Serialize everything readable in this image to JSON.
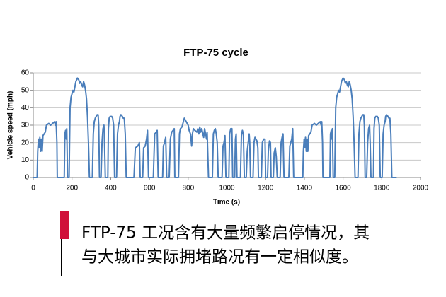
{
  "chart_data": {
    "type": "line",
    "title": "FTP-75 cycle",
    "xlabel": "Time (s)",
    "ylabel": "Vehicle speed (mph)",
    "color": "#4a7ebb",
    "xlim": [
      0,
      2000
    ],
    "xticks": [
      0,
      200,
      400,
      600,
      800,
      1000,
      1200,
      1400,
      1600,
      1800,
      2000
    ],
    "ylim": [
      0,
      60
    ],
    "yticks": [
      0,
      10,
      20,
      30,
      40,
      50,
      60
    ],
    "grid": true,
    "x": [
      0,
      20,
      23,
      27,
      30,
      34,
      38,
      42,
      46,
      50,
      56,
      62,
      68,
      80,
      90,
      100,
      110,
      115,
      118,
      122,
      124,
      160,
      163,
      167,
      170,
      173,
      177,
      185,
      190,
      195,
      200,
      205,
      210,
      215,
      220,
      228,
      235,
      240,
      245,
      250,
      255,
      260,
      265,
      270,
      275,
      280,
      285,
      290,
      305,
      310,
      315,
      320,
      325,
      330,
      335,
      338,
      342,
      350,
      355,
      360,
      365,
      368,
      372,
      385,
      388,
      392,
      397,
      405,
      410,
      415,
      420,
      430,
      435,
      440,
      445,
      448,
      453,
      460,
      465,
      470,
      475,
      480,
      505,
      520,
      527,
      540,
      548,
      552,
      565,
      570,
      578,
      585,
      590,
      595,
      620,
      627,
      635,
      640,
      645,
      668,
      672,
      678,
      684,
      689,
      702,
      708,
      715,
      722,
      728,
      731,
      750,
      755,
      760,
      768,
      780,
      790,
      800,
      805,
      812,
      818,
      822,
      827,
      835,
      845,
      850,
      855,
      860,
      865,
      870,
      880,
      885,
      890,
      895,
      898,
      905,
      925,
      930,
      935,
      940,
      945,
      950,
      955,
      975,
      980,
      985,
      990,
      995,
      1010,
      1014,
      1020,
      1026,
      1030,
      1040,
      1044,
      1048,
      1052,
      1070,
      1075,
      1080,
      1085,
      1090,
      1100,
      1105,
      1110,
      1115,
      1118,
      1122,
      1135,
      1140,
      1145,
      1150,
      1155,
      1160,
      1163,
      1178,
      1183,
      1190,
      1197,
      1200,
      1210,
      1214,
      1220,
      1225,
      1228,
      1240,
      1244,
      1250,
      1255,
      1260,
      1275,
      1280,
      1285,
      1290,
      1295,
      1320,
      1325,
      1330,
      1335,
      1340,
      1345,
      1372,
      1392,
      1395,
      1399,
      1402,
      1406,
      1410,
      1414,
      1418,
      1422,
      1428,
      1434,
      1440,
      1452,
      1462,
      1472,
      1482,
      1487,
      1490,
      1494,
      1496,
      1532,
      1535,
      1539,
      1542,
      1545,
      1549,
      1557,
      1562,
      1567,
      1572,
      1577,
      1582,
      1587,
      1592,
      1600,
      1607,
      1612,
      1617,
      1622,
      1627,
      1632,
      1637,
      1642,
      1647,
      1652,
      1657,
      1662,
      1677,
      1682,
      1687,
      1692,
      1697,
      1702,
      1707,
      1710,
      1714,
      1722,
      1727,
      1732,
      1737,
      1740,
      1744,
      1757,
      1760,
      1764,
      1769,
      1777,
      1782,
      1787,
      1792,
      1802,
      1807,
      1812,
      1817,
      1820,
      1825,
      1832,
      1837,
      1842,
      1847,
      1852,
      1877
    ],
    "values": [
      0,
      0,
      15,
      22,
      17,
      23,
      15,
      22,
      15,
      24,
      25,
      26,
      30,
      31,
      30,
      31,
      32,
      30,
      32,
      20,
      0,
      0,
      25,
      27,
      22,
      28,
      0,
      0,
      40,
      46,
      48,
      50,
      49,
      52,
      55,
      57,
      56,
      54,
      55,
      53,
      52,
      55,
      53,
      50,
      45,
      35,
      20,
      0,
      0,
      25,
      32,
      34,
      35,
      36,
      36,
      30,
      0,
      0,
      20,
      28,
      30,
      20,
      0,
      0,
      28,
      34,
      35,
      35,
      34,
      30,
      0,
      0,
      25,
      30,
      32,
      35,
      36,
      35,
      34,
      34,
      25,
      0,
      0,
      0,
      17,
      18,
      20,
      0,
      0,
      17,
      18,
      22,
      27,
      0,
      0,
      25,
      26,
      27,
      0,
      0,
      18,
      20,
      23,
      0,
      0,
      22,
      26,
      27,
      28,
      0,
      0,
      25,
      28,
      29,
      34,
      32,
      30,
      27,
      25,
      18,
      25,
      28,
      27,
      26,
      28,
      25,
      29,
      26,
      28,
      23,
      28,
      25,
      22,
      26,
      0,
      0,
      25,
      27,
      28,
      25,
      20,
      0,
      0,
      18,
      20,
      24,
      0,
      0,
      25,
      28,
      28,
      0,
      0,
      22,
      25,
      0,
      0,
      24,
      27,
      25,
      0,
      0,
      15,
      20,
      25,
      20,
      0,
      0,
      20,
      23,
      22,
      21,
      17,
      0,
      0,
      20,
      22,
      22,
      0,
      0,
      15,
      21,
      20,
      0,
      0,
      14,
      17,
      12,
      0,
      0,
      20,
      23,
      25,
      0,
      0,
      18,
      20,
      22,
      28,
      0,
      0,
      0,
      15,
      22,
      17,
      23,
      15,
      22,
      15,
      24,
      25,
      26,
      30,
      31,
      30,
      31,
      32,
      30,
      32,
      20,
      0,
      0,
      25,
      27,
      22,
      28,
      0,
      0,
      40,
      46,
      48,
      50,
      49,
      52,
      55,
      57,
      56,
      54,
      55,
      53,
      52,
      55,
      53,
      50,
      45,
      35,
      20,
      0,
      0,
      25,
      32,
      34,
      35,
      36,
      36,
      30,
      0,
      0,
      20,
      28,
      30,
      20,
      0,
      0,
      28,
      34,
      35,
      35,
      34,
      30,
      0,
      0,
      25,
      30,
      32,
      35,
      36,
      35,
      34,
      34,
      25,
      0,
      0
    ]
  },
  "caption": {
    "lines": [
      "FTP-75 工况含有大量频繁启停情况，其",
      "与大城市实际拥堵路况有一定相似度。"
    ]
  }
}
